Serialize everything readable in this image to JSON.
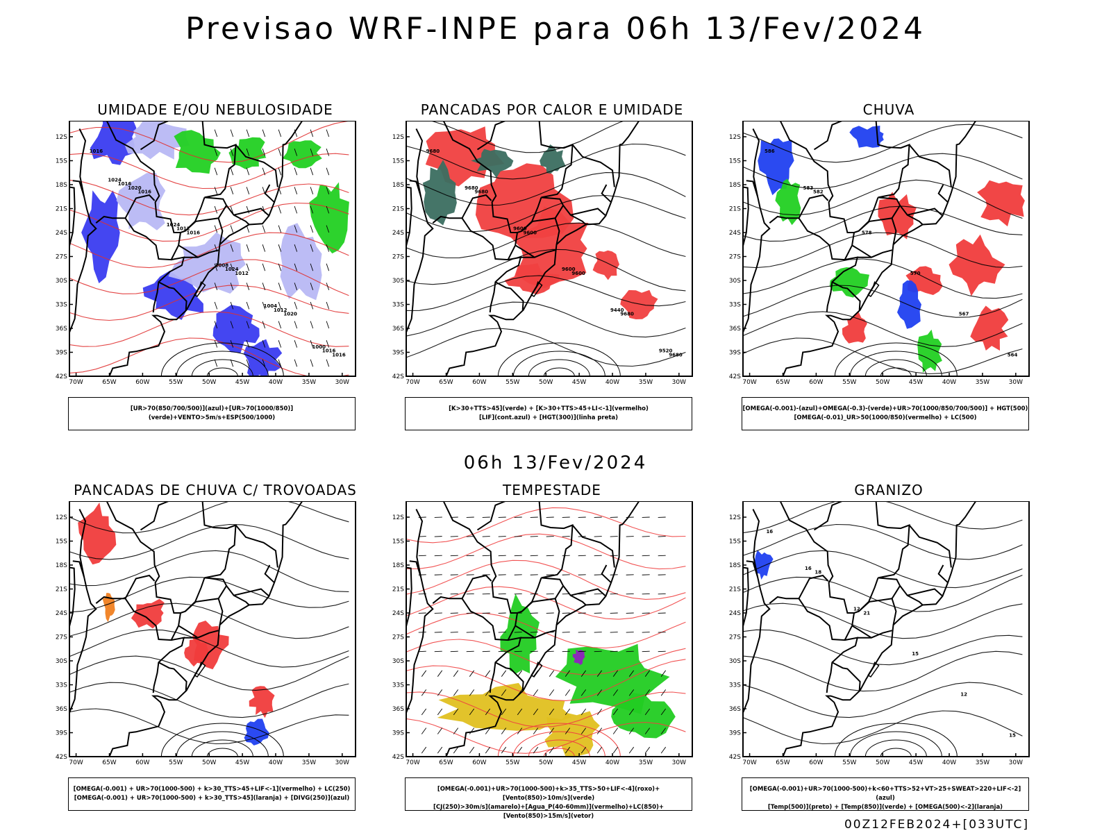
{
  "page": {
    "main_title": "Previsao WRF-INPE  para 06h 13/Fev/2024",
    "mid_title": "06h 13/Fev/2024",
    "footer": "00Z12FEB2024+[033UTC]"
  },
  "axes": {
    "lat_labels": [
      "12S",
      "15S",
      "18S",
      "21S",
      "24S",
      "27S",
      "30S",
      "33S",
      "36S",
      "39S",
      "42S"
    ],
    "lon_labels": [
      "70W",
      "65W",
      "60W",
      "55W",
      "50W",
      "45W",
      "40W",
      "35W",
      "30W"
    ]
  },
  "panels": [
    {
      "id": "umidade",
      "title": "UMIDADE E/OU NEBULOSIDADE",
      "caption": [
        "[UR>70(850/700/500)](azul)+[UR>70(1000/850)](verde)+VENTO>5m/s+ESP(500/1000)"
      ],
      "contour_labels": [
        "1016",
        "1016",
        "1016",
        "1012",
        "1020",
        "1016",
        "1020",
        "1012",
        "1024",
        "1012",
        "1016",
        "1016",
        "1024",
        "1008",
        "1004",
        "1000",
        "1024"
      ],
      "colors": {
        "primary": "#3a3cf0",
        "secondary": "#b8b8f4",
        "overlay": "#22d022",
        "line": "#e03030"
      }
    },
    {
      "id": "pancadas-calor",
      "title": "PANCADAS POR CALOR E UMIDADE",
      "caption": [
        "[K>30+TTS>45](verde) + [K>30+TTS>45+LI<-1](vermelho)",
        "[LIF](cont.azul) + [HGT(300)](linha preta)"
      ],
      "contour_labels": [
        "9680",
        "9680",
        "9600",
        "9600",
        "9680",
        "9680",
        "9680",
        "9600",
        "9600",
        "9440",
        "9520"
      ],
      "colors": {
        "primary": "#f04040",
        "secondary": "#3b6e60",
        "overlay": "#2040f0",
        "line": "#000000"
      }
    },
    {
      "id": "chuva",
      "title": "CHUVA",
      "caption": [
        "[OMEGA(-0.001)-(azul)+OMEGA(-0.3)-(verde)+UR>70(1000/850/700/500)] + HGT(500)",
        "[OMEGA(-0.01)_UR>50(1000/850)(vermelho) + LC(500)"
      ],
      "contour_labels": [
        "586",
        "582",
        "578",
        "570",
        "567",
        "564",
        "583"
      ],
      "colors": {
        "primary": "#f03c3c",
        "secondary": "#2040f0",
        "overlay": "#22d022",
        "line": "#000000"
      }
    },
    {
      "id": "trovoadas",
      "title": "PANCADAS DE CHUVA C/ TROVOADAS",
      "caption": [
        "[OMEGA(-0.001) + UR>70(1000-500) + k>30_TTS>45+LIF<-1](vermelho) + LC(250)",
        "[OMEGA(-0.001) + UR>70(1000-500) + k>30_TTS>45](laranja) + [DIVG(250)](azul)"
      ],
      "contour_labels": [],
      "colors": {
        "primary": "#f03c3c",
        "secondary": "#f08020",
        "overlay": "#2040f0",
        "line": "#000000"
      }
    },
    {
      "id": "tempestade",
      "title": "TEMPESTADE",
      "caption": [
        "[OMEGA(-0.001)+UR>70(1000-500)+k>35_TTS>50+LIF<-4](roxo)+[Vento(850)>10m/s](verde)",
        "[CJ(250)>30m/s](amarelo)+[Agua_P(40-60mm)](vermelho)+LC(850)+[Vento(850)>15m/s](vetor)"
      ],
      "contour_labels": [],
      "colors": {
        "primary": "#22cc22",
        "secondary": "#e0c020",
        "overlay": "#9020c0",
        "line": "#f04040"
      }
    },
    {
      "id": "granizo",
      "title": "GRANIZO",
      "caption": [
        "[OMEGA(-0.001)+UR>70(1000-500)+k<60+TTS>52+VT>25+SWEAT>220+LIF<-2](azul)",
        "[Temp(500)](preto) + [Temp(850)](verde) + [OMEGA(500)<-2](laranja)"
      ],
      "contour_labels": [
        "16",
        "18",
        "21",
        "15",
        "12",
        "15",
        "16",
        "12"
      ],
      "colors": {
        "primary": "#22cc22",
        "secondary": "#f08020",
        "overlay": "#2040f0",
        "line": "#000000"
      }
    }
  ]
}
